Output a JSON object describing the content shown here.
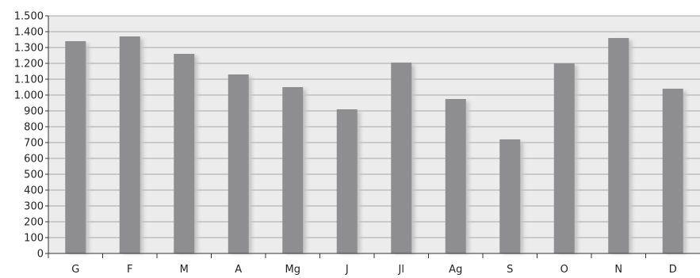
{
  "chart_data": {
    "type": "bar",
    "title": "",
    "xlabel": "",
    "ylabel": "",
    "categories": [
      "G",
      "F",
      "M",
      "A",
      "Mg",
      "J",
      "Jl",
      "Ag",
      "S",
      "O",
      "N",
      "D"
    ],
    "values": [
      1340,
      1370,
      1260,
      1130,
      1050,
      910,
      1205,
      975,
      720,
      1200,
      1360,
      1040
    ],
    "ylim": [
      0,
      1500
    ],
    "yticks": [
      0,
      100,
      200,
      300,
      400,
      500,
      600,
      700,
      800,
      900,
      1000,
      1100,
      1200,
      1300,
      1400,
      1500
    ],
    "ytick_labels": [
      "0",
      "100",
      "200",
      "300",
      "400",
      "500",
      "600",
      "700",
      "800",
      "900",
      "1.000",
      "1.100",
      "1.200",
      "1.300",
      "1.400",
      "1.500"
    ],
    "grid": true,
    "legend": "none",
    "colors": {
      "bar": "#8e8e90",
      "bar_shadow": "#c4c4c4",
      "plot_background": "#ececec",
      "gridline": "#a6a6a6",
      "axis": "#333333"
    }
  }
}
